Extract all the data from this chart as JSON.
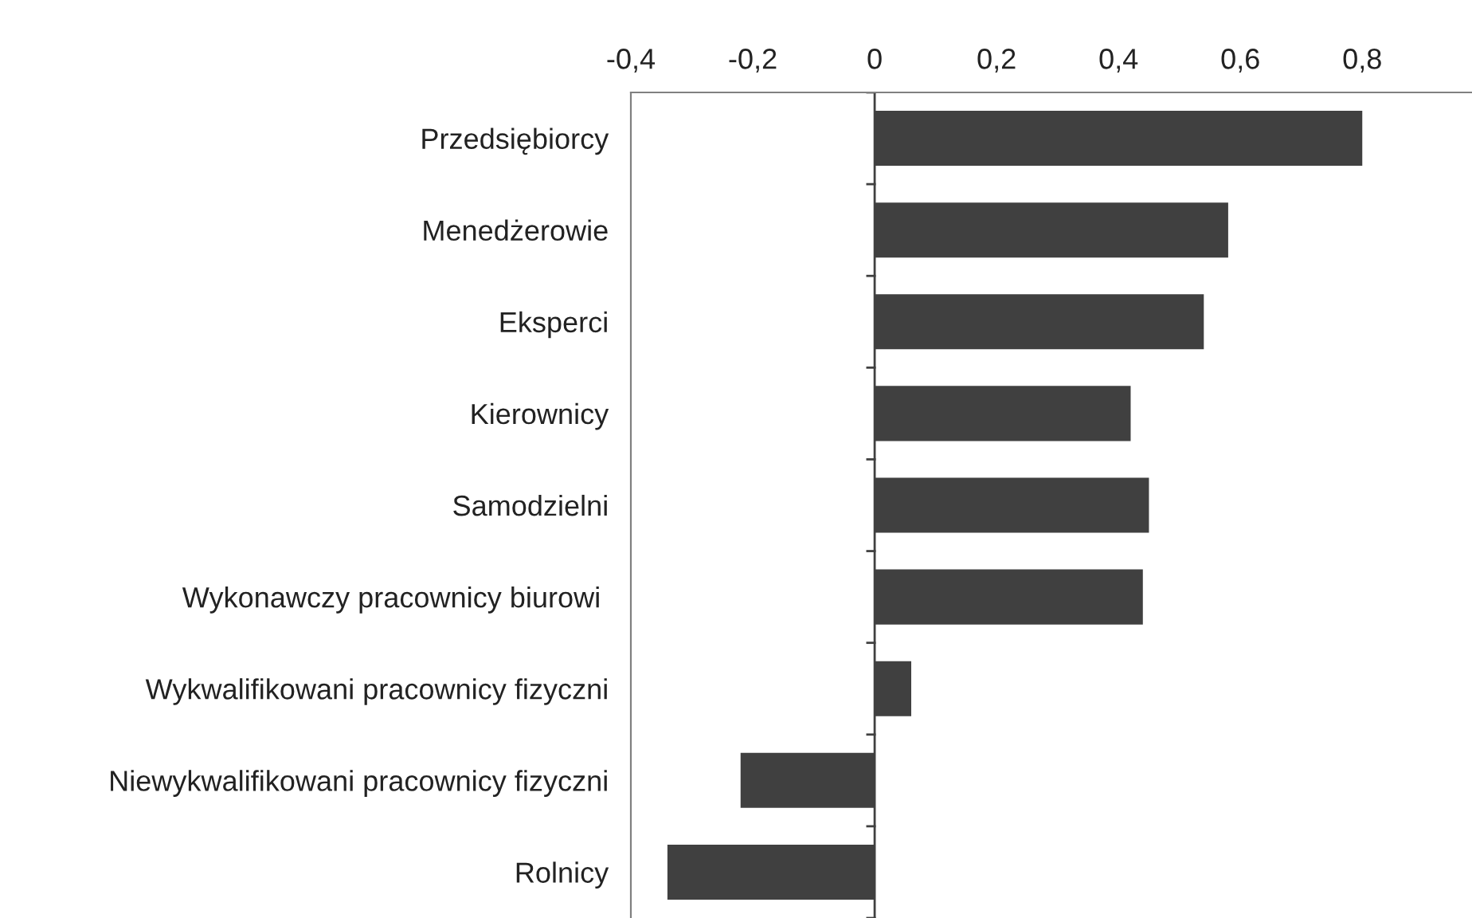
{
  "chart_data": {
    "type": "bar",
    "orientation": "horizontal",
    "categories": [
      "Przedsiębiorcy",
      "Menedżerowie",
      "Eksperci",
      "Kierownicy",
      "Samodzielni",
      "Wykonawczy pracownicy biurowi ",
      "Wykwalifikowani pracownicy fizyczni",
      "Niewykwalifikowani pracownicy fizyczni",
      "Rolnicy"
    ],
    "values": [
      0.8,
      0.58,
      0.54,
      0.42,
      0.45,
      0.44,
      0.06,
      -0.22,
      -0.34
    ],
    "color": "#404040",
    "xlim": [
      -0.4,
      0.98
    ],
    "xticks": [
      {
        "value": -0.4,
        "label": "-0,4"
      },
      {
        "value": -0.2,
        "label": "-0,2"
      },
      0,
      {
        "value": 0.2,
        "label": "0,2"
      },
      {
        "value": 0.4,
        "label": "0,4"
      },
      {
        "value": 0.6,
        "label": "0,6"
      },
      {
        "value": 0.8,
        "label": "0,8"
      }
    ],
    "legend": false
  }
}
